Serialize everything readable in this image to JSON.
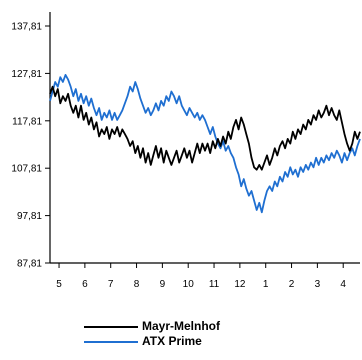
{
  "chart_data": {
    "type": "line",
    "title": "",
    "xlabel": "",
    "ylabel": "",
    "ylim": [
      87.81,
      137.81
    ],
    "yticks": [
      "87,81",
      "97,81",
      "107,81",
      "117,81",
      "127,81",
      "137,81"
    ],
    "ytick_values": [
      87.81,
      97.81,
      107.81,
      117.81,
      127.81,
      137.81
    ],
    "xticks": [
      "5",
      "6",
      "7",
      "8",
      "9",
      "10",
      "11",
      "12",
      "1",
      "2",
      "3",
      "4"
    ],
    "xlim": [
      0,
      12
    ],
    "grid": false,
    "legend_position": "bottom",
    "series": [
      {
        "name": "Mayr-Melnhof",
        "color": "#000000",
        "points": [
          [
            0.0,
            123.5
          ],
          [
            0.1,
            125.0
          ],
          [
            0.2,
            123.0
          ],
          [
            0.3,
            124.5
          ],
          [
            0.4,
            121.5
          ],
          [
            0.5,
            123.0
          ],
          [
            0.6,
            122.0
          ],
          [
            0.7,
            123.5
          ],
          [
            0.8,
            121.0
          ],
          [
            0.9,
            119.5
          ],
          [
            1.0,
            121.0
          ],
          [
            1.1,
            118.5
          ],
          [
            1.2,
            121.0
          ],
          [
            1.3,
            118.0
          ],
          [
            1.4,
            119.5
          ],
          [
            1.5,
            117.0
          ],
          [
            1.6,
            118.5
          ],
          [
            1.7,
            116.0
          ],
          [
            1.8,
            117.5
          ],
          [
            1.9,
            114.5
          ],
          [
            2.0,
            116.0
          ],
          [
            2.1,
            115.0
          ],
          [
            2.2,
            116.5
          ],
          [
            2.3,
            114.0
          ],
          [
            2.4,
            116.0
          ],
          [
            2.5,
            115.0
          ],
          [
            2.6,
            116.5
          ],
          [
            2.7,
            114.5
          ],
          [
            2.8,
            116.0
          ],
          [
            2.9,
            115.0
          ],
          [
            3.0,
            114.0
          ],
          [
            3.1,
            112.5
          ],
          [
            3.2,
            113.5
          ],
          [
            3.3,
            111.0
          ],
          [
            3.4,
            112.5
          ],
          [
            3.5,
            110.0
          ],
          [
            3.6,
            112.0
          ],
          [
            3.7,
            109.0
          ],
          [
            3.8,
            111.0
          ],
          [
            3.9,
            108.5
          ],
          [
            4.0,
            110.5
          ],
          [
            4.1,
            112.5
          ],
          [
            4.2,
            110.0
          ],
          [
            4.3,
            112.0
          ],
          [
            4.4,
            109.0
          ],
          [
            4.5,
            111.5
          ],
          [
            4.6,
            110.0
          ],
          [
            4.7,
            108.5
          ],
          [
            4.8,
            110.0
          ],
          [
            4.9,
            111.5
          ],
          [
            5.0,
            109.0
          ],
          [
            5.1,
            110.5
          ],
          [
            5.2,
            112.0
          ],
          [
            5.3,
            110.0
          ],
          [
            5.4,
            111.5
          ],
          [
            5.5,
            109.0
          ],
          [
            5.6,
            111.0
          ],
          [
            5.7,
            113.0
          ],
          [
            5.8,
            111.0
          ],
          [
            5.9,
            113.0
          ],
          [
            6.0,
            111.5
          ],
          [
            6.1,
            113.0
          ],
          [
            6.2,
            111.0
          ],
          [
            6.3,
            113.5
          ],
          [
            6.4,
            112.0
          ],
          [
            6.5,
            114.0
          ],
          [
            6.6,
            112.5
          ],
          [
            6.7,
            114.5
          ],
          [
            6.8,
            113.0
          ],
          [
            6.9,
            115.5
          ],
          [
            7.0,
            114.0
          ],
          [
            7.1,
            116.5
          ],
          [
            7.2,
            118.0
          ],
          [
            7.3,
            116.0
          ],
          [
            7.4,
            118.5
          ],
          [
            7.5,
            117.0
          ],
          [
            7.6,
            115.0
          ],
          [
            7.7,
            113.0
          ],
          [
            7.8,
            110.0
          ],
          [
            7.9,
            108.0
          ],
          [
            8.0,
            107.5
          ],
          [
            8.1,
            108.5
          ],
          [
            8.2,
            107.5
          ],
          [
            8.3,
            109.0
          ],
          [
            8.4,
            110.5
          ],
          [
            8.5,
            108.5
          ],
          [
            8.6,
            110.0
          ],
          [
            8.7,
            112.0
          ],
          [
            8.8,
            110.5
          ],
          [
            8.9,
            112.5
          ],
          [
            9.0,
            113.5
          ],
          [
            9.1,
            112.0
          ],
          [
            9.2,
            114.0
          ],
          [
            9.3,
            113.0
          ],
          [
            9.4,
            115.5
          ],
          [
            9.5,
            114.0
          ],
          [
            9.6,
            116.0
          ],
          [
            9.7,
            115.0
          ],
          [
            9.8,
            117.0
          ],
          [
            9.9,
            116.0
          ],
          [
            10.0,
            118.0
          ],
          [
            10.1,
            117.0
          ],
          [
            10.2,
            119.0
          ],
          [
            10.3,
            118.0
          ],
          [
            10.4,
            120.0
          ],
          [
            10.5,
            118.5
          ],
          [
            10.6,
            119.5
          ],
          [
            10.7,
            121.0
          ],
          [
            10.8,
            119.0
          ],
          [
            10.9,
            120.5
          ],
          [
            11.0,
            119.0
          ],
          [
            11.1,
            118.0
          ],
          [
            11.2,
            120.0
          ],
          [
            11.3,
            117.5
          ],
          [
            11.4,
            115.0
          ],
          [
            11.5,
            113.0
          ],
          [
            11.6,
            111.5
          ],
          [
            11.7,
            113.0
          ],
          [
            11.8,
            115.5
          ],
          [
            11.9,
            114.0
          ],
          [
            12.0,
            115.5
          ]
        ]
      },
      {
        "name": "ATX Prime",
        "color": "#1f6fd1",
        "points": [
          [
            0.0,
            122.0
          ],
          [
            0.1,
            124.0
          ],
          [
            0.2,
            126.0
          ],
          [
            0.3,
            125.0
          ],
          [
            0.4,
            127.0
          ],
          [
            0.5,
            126.0
          ],
          [
            0.6,
            127.5
          ],
          [
            0.7,
            126.5
          ],
          [
            0.8,
            125.0
          ],
          [
            0.9,
            123.0
          ],
          [
            1.0,
            124.5
          ],
          [
            1.1,
            122.0
          ],
          [
            1.2,
            123.5
          ],
          [
            1.3,
            121.5
          ],
          [
            1.4,
            123.0
          ],
          [
            1.5,
            121.0
          ],
          [
            1.6,
            122.5
          ],
          [
            1.7,
            120.5
          ],
          [
            1.8,
            119.0
          ],
          [
            1.9,
            120.5
          ],
          [
            2.0,
            118.0
          ],
          [
            2.1,
            119.5
          ],
          [
            2.2,
            118.5
          ],
          [
            2.3,
            120.0
          ],
          [
            2.4,
            118.0
          ],
          [
            2.5,
            119.5
          ],
          [
            2.6,
            118.0
          ],
          [
            2.7,
            119.0
          ],
          [
            2.8,
            120.0
          ],
          [
            2.9,
            121.5
          ],
          [
            3.0,
            123.0
          ],
          [
            3.1,
            125.0
          ],
          [
            3.2,
            124.0
          ],
          [
            3.3,
            126.0
          ],
          [
            3.4,
            124.5
          ],
          [
            3.5,
            122.5
          ],
          [
            3.6,
            121.0
          ],
          [
            3.7,
            119.5
          ],
          [
            3.8,
            120.5
          ],
          [
            3.9,
            119.0
          ],
          [
            4.0,
            120.0
          ],
          [
            4.1,
            121.5
          ],
          [
            4.2,
            120.0
          ],
          [
            4.3,
            122.0
          ],
          [
            4.4,
            121.0
          ],
          [
            4.5,
            123.0
          ],
          [
            4.6,
            122.0
          ],
          [
            4.7,
            124.0
          ],
          [
            4.8,
            123.0
          ],
          [
            4.9,
            121.5
          ],
          [
            5.0,
            123.0
          ],
          [
            5.1,
            121.0
          ],
          [
            5.2,
            120.0
          ],
          [
            5.3,
            119.0
          ],
          [
            5.4,
            120.5
          ],
          [
            5.5,
            119.5
          ],
          [
            5.6,
            118.5
          ],
          [
            5.7,
            119.5
          ],
          [
            5.8,
            118.0
          ],
          [
            5.9,
            119.0
          ],
          [
            6.0,
            118.0
          ],
          [
            6.1,
            116.5
          ],
          [
            6.2,
            115.0
          ],
          [
            6.3,
            116.5
          ],
          [
            6.4,
            114.5
          ],
          [
            6.5,
            113.0
          ],
          [
            6.6,
            112.0
          ],
          [
            6.7,
            113.5
          ],
          [
            6.8,
            111.5
          ],
          [
            6.9,
            112.5
          ],
          [
            7.0,
            111.0
          ],
          [
            7.1,
            110.0
          ],
          [
            7.2,
            108.0
          ],
          [
            7.3,
            106.5
          ],
          [
            7.4,
            104.0
          ],
          [
            7.5,
            105.5
          ],
          [
            7.6,
            103.5
          ],
          [
            7.7,
            102.0
          ],
          [
            7.8,
            103.0
          ],
          [
            7.9,
            101.0
          ],
          [
            8.0,
            99.0
          ],
          [
            8.1,
            100.5
          ],
          [
            8.2,
            98.5
          ],
          [
            8.3,
            101.0
          ],
          [
            8.4,
            103.0
          ],
          [
            8.5,
            104.0
          ],
          [
            8.6,
            103.0
          ],
          [
            8.7,
            105.0
          ],
          [
            8.8,
            104.0
          ],
          [
            8.9,
            106.0
          ],
          [
            9.0,
            105.0
          ],
          [
            9.1,
            107.0
          ],
          [
            9.2,
            106.0
          ],
          [
            9.3,
            108.0
          ],
          [
            9.4,
            106.5
          ],
          [
            9.5,
            107.5
          ],
          [
            9.6,
            106.0
          ],
          [
            9.7,
            108.0
          ],
          [
            9.8,
            107.0
          ],
          [
            9.9,
            108.5
          ],
          [
            10.0,
            107.5
          ],
          [
            10.1,
            109.0
          ],
          [
            10.2,
            108.0
          ],
          [
            10.3,
            110.0
          ],
          [
            10.4,
            108.5
          ],
          [
            10.5,
            110.0
          ],
          [
            10.6,
            109.0
          ],
          [
            10.7,
            110.5
          ],
          [
            10.8,
            109.5
          ],
          [
            10.9,
            111.0
          ],
          [
            11.0,
            110.0
          ],
          [
            11.1,
            111.5
          ],
          [
            11.2,
            110.5
          ],
          [
            11.3,
            109.0
          ],
          [
            11.4,
            111.0
          ],
          [
            11.5,
            109.5
          ],
          [
            11.6,
            111.0
          ],
          [
            11.7,
            112.0
          ],
          [
            11.8,
            110.5
          ],
          [
            11.9,
            112.5
          ],
          [
            12.0,
            114.0
          ]
        ]
      }
    ]
  }
}
